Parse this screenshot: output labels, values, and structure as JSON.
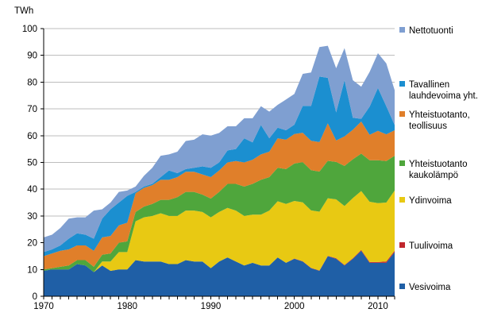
{
  "chart_data": {
    "type": "area",
    "stacked": true,
    "ylabel": "TWh",
    "ylim": [
      0,
      100
    ],
    "yticks": [
      0,
      10,
      20,
      30,
      40,
      50,
      60,
      70,
      80,
      90,
      100
    ],
    "xlim": [
      1970,
      2012
    ],
    "xticks": [
      1970,
      1980,
      1990,
      2000,
      2010
    ],
    "x": [
      1970,
      1971,
      1972,
      1973,
      1974,
      1975,
      1976,
      1977,
      1978,
      1979,
      1980,
      1981,
      1982,
      1983,
      1984,
      1985,
      1986,
      1987,
      1988,
      1989,
      1990,
      1991,
      1992,
      1993,
      1994,
      1995,
      1996,
      1997,
      1998,
      1999,
      2000,
      2001,
      2002,
      2003,
      2004,
      2005,
      2006,
      2007,
      2008,
      2009,
      2010,
      2011,
      2012
    ],
    "series": [
      {
        "name": "Vesivoima",
        "color": "#1f5fa6",
        "values": [
          9.5,
          10.0,
          10.0,
          10.0,
          12.0,
          11.5,
          9.0,
          11.5,
          9.5,
          10.0,
          10.0,
          13.5,
          13.0,
          13.0,
          13.0,
          12.0,
          12.0,
          13.5,
          13.0,
          13.0,
          10.5,
          13.0,
          14.5,
          13.0,
          11.5,
          12.5,
          11.5,
          11.5,
          14.5,
          12.5,
          14.0,
          13.0,
          10.5,
          9.5,
          15.0,
          14.0,
          11.5,
          14.0,
          17.0,
          12.5,
          12.5,
          12.5,
          16.5
        ]
      },
      {
        "name": "Tuulivoima",
        "color": "#c0272d",
        "values": [
          0,
          0,
          0,
          0,
          0,
          0,
          0,
          0,
          0,
          0,
          0,
          0,
          0,
          0,
          0,
          0,
          0,
          0,
          0,
          0,
          0,
          0,
          0,
          0,
          0,
          0,
          0,
          0,
          0,
          0,
          0.1,
          0.1,
          0.1,
          0.1,
          0.1,
          0.2,
          0.2,
          0.2,
          0.3,
          0.3,
          0.3,
          0.5,
          0.5
        ]
      },
      {
        "name": "Ydinvoima",
        "color": "#e8c913",
        "values": [
          0,
          0,
          0,
          0,
          0,
          0,
          0,
          1.5,
          3.5,
          6.5,
          6.5,
          14.5,
          16.5,
          17.0,
          18.0,
          18.0,
          18.0,
          18.5,
          19.0,
          18.5,
          19.0,
          18.5,
          18.5,
          19.0,
          18.5,
          18.0,
          19.0,
          20.5,
          21.0,
          22.0,
          21.5,
          22.0,
          21.5,
          22.0,
          21.5,
          22.0,
          22.0,
          22.5,
          22.0,
          22.5,
          22.0,
          22.0,
          22.5
        ]
      },
      {
        "name": "Yhteistuotanto kaukolämpö",
        "color": "#4fa63c",
        "values": [
          0.5,
          0.5,
          1.0,
          1.5,
          1.5,
          2.0,
          2.0,
          2.5,
          3.0,
          3.5,
          4.0,
          3.5,
          4.0,
          4.5,
          5.0,
          6.0,
          7.0,
          7.0,
          7.0,
          6.5,
          7.0,
          7.5,
          9.0,
          10.0,
          11.0,
          11.5,
          13.0,
          12.5,
          12.5,
          13.0,
          14.0,
          15.0,
          15.0,
          15.0,
          14.0,
          14.0,
          15.0,
          14.5,
          14.0,
          15.5,
          16.0,
          15.5,
          13.0
        ]
      },
      {
        "name": "Yhteistuotanto, teollisuus",
        "color": "#e07f2a",
        "values": [
          5.0,
          5.5,
          6.0,
          6.0,
          5.5,
          5.5,
          6.0,
          6.5,
          6.5,
          6.5,
          7.0,
          7.0,
          7.0,
          7.0,
          7.5,
          7.5,
          7.5,
          7.5,
          7.5,
          7.5,
          8.0,
          8.0,
          8.0,
          8.5,
          9.0,
          9.0,
          9.5,
          9.5,
          11.0,
          11.0,
          11.0,
          11.0,
          11.0,
          11.0,
          14.0,
          8.0,
          11.0,
          11.0,
          12.0,
          9.5,
          11.0,
          10.0,
          9.5
        ]
      },
      {
        "name": "Tavallinen lauhdevoima yht.",
        "color": "#1b8fd0",
        "values": [
          1.5,
          1.5,
          2.0,
          4.0,
          4.5,
          4.0,
          4.5,
          7.0,
          10.0,
          8.5,
          10.0,
          0.5,
          0.5,
          0.5,
          1.0,
          3.5,
          1.5,
          1.0,
          1.5,
          3.0,
          3.5,
          3.0,
          4.5,
          4.5,
          9.0,
          6.5,
          11.0,
          5.0,
          4.0,
          3.5,
          3.5,
          10.0,
          13.0,
          24.5,
          17.0,
          10.5,
          21.0,
          4.5,
          1.0,
          10.5,
          16.0,
          10.5,
          2.0
        ]
      },
      {
        "name": "Nettotuonti",
        "color": "#7f9fd1",
        "values": [
          5.5,
          5.5,
          6.5,
          7.5,
          6.0,
          6.5,
          10.5,
          3.5,
          2.5,
          4.0,
          2.0,
          2.0,
          4.0,
          6.0,
          8.0,
          6.0,
          8.0,
          10.5,
          10.5,
          12.0,
          12.0,
          11.0,
          9.0,
          8.5,
          7.5,
          9.0,
          7.0,
          10.0,
          8.5,
          11.5,
          11.5,
          12.0,
          12.5,
          11.0,
          12.0,
          16.5,
          12.0,
          14.0,
          12.0,
          13.0,
          13.0,
          16.0,
          13.0
        ]
      }
    ],
    "legend": [
      "Nettotuonti",
      "Tavallinen lauhdevoima yht.",
      "Yhteistuotanto, teollisuus",
      "Yhteistuotanto kaukolämpö",
      "Ydinvoima",
      "Tuulivoima",
      "Vesivoima"
    ],
    "legend_lines": {
      "Nettotuonti": [
        "Nettotuonti"
      ],
      "Tavallinen lauhdevoima yht.": [
        "Tavallinen",
        "lauhdevoima yht."
      ],
      "Yhteistuotanto, teollisuus": [
        "Yhteistuotanto,",
        "teollisuus"
      ],
      "Yhteistuotanto kaukolämpö": [
        "Yhteistuotanto",
        "kaukolämpö"
      ],
      "Ydinvoima": [
        "Ydinvoima"
      ],
      "Tuulivoima": [
        "Tuulivoima"
      ],
      "Vesivoima": [
        "Vesivoima"
      ]
    },
    "legend_placement": "right"
  }
}
